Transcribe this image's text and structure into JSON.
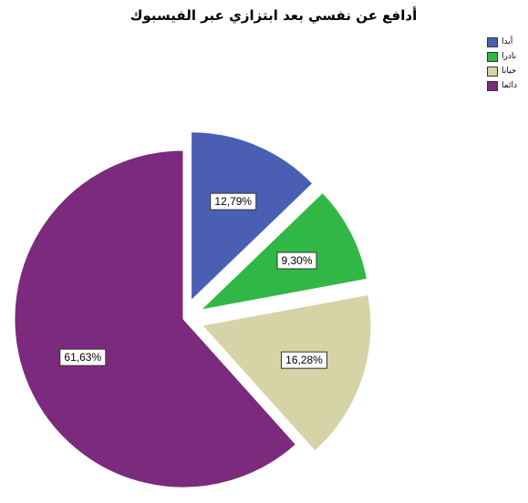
{
  "chart_data": {
    "type": "pie",
    "title": "أدافع عن نفسي بعد ابتزازي عبر الفيسبوك",
    "legend_position": "top-right",
    "slices": [
      {
        "label": "أبدا",
        "value": 12.79,
        "display": "12,79%",
        "color": "#4a5fb4"
      },
      {
        "label": "نادرا",
        "value": 9.3,
        "display": "9,30%",
        "color": "#31b746"
      },
      {
        "label": "حيانا",
        "value": 16.28,
        "display": "16,28%",
        "color": "#d6d3a6"
      },
      {
        "label": "دائما",
        "value": 61.63,
        "display": "61,63%",
        "color": "#7b2a7d"
      }
    ]
  }
}
